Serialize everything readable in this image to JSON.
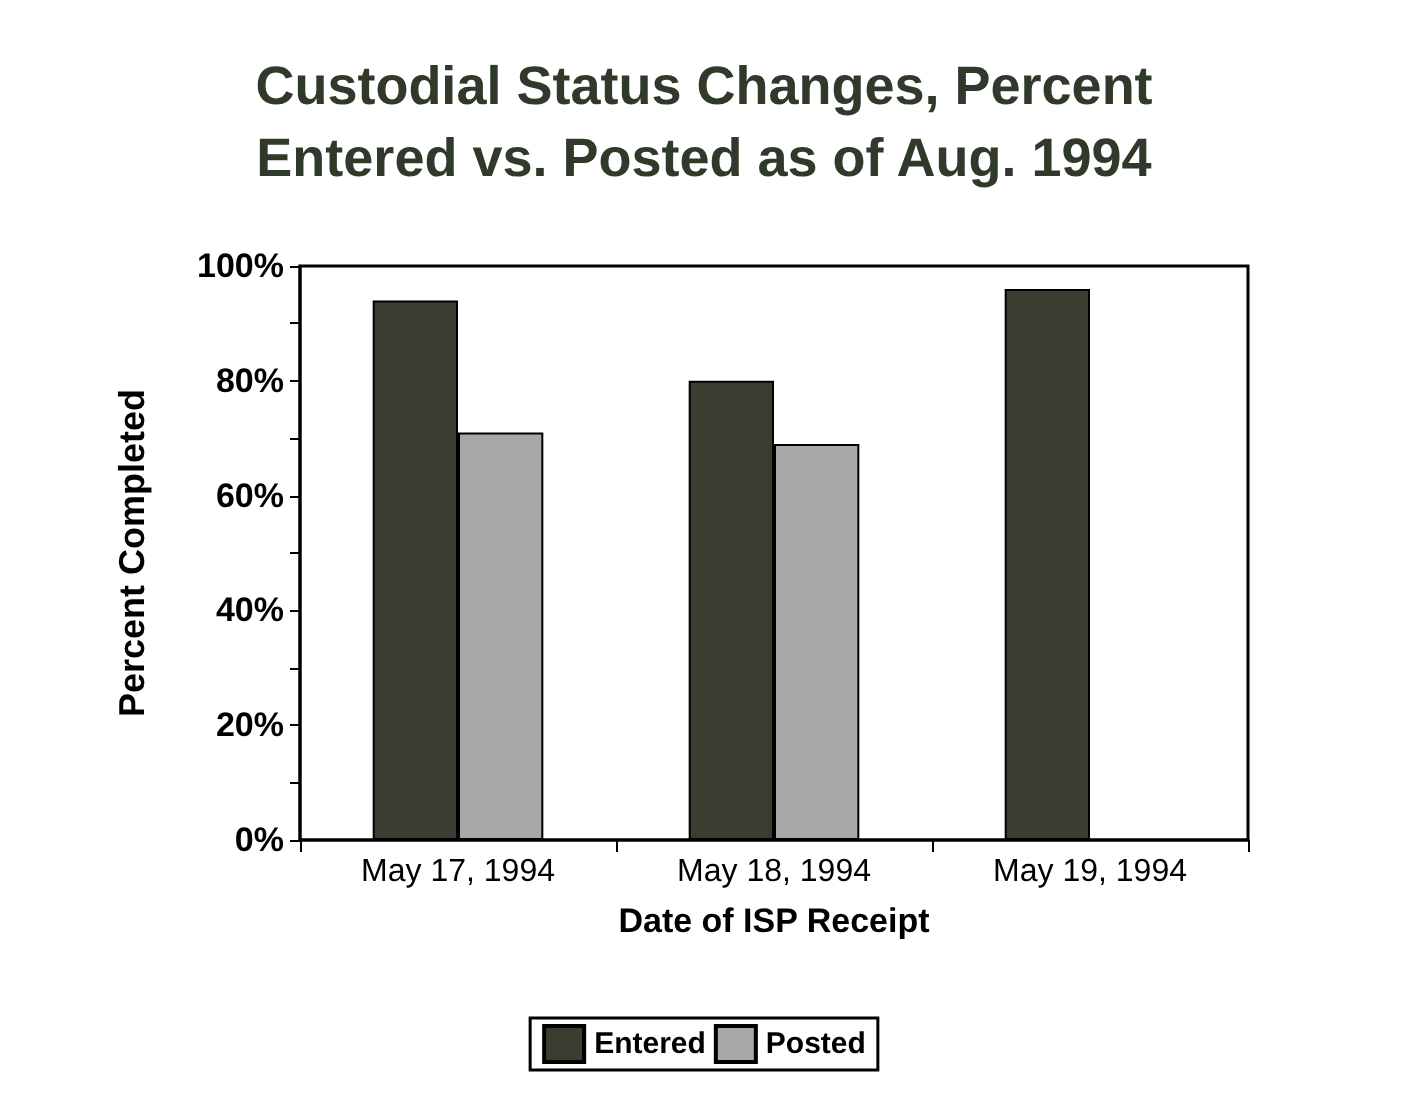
{
  "chart_data": {
    "type": "bar",
    "title": "Custodial Status Changes, Percent\nEntered vs. Posted as of Aug. 1994",
    "xlabel": "Date of ISP Receipt",
    "ylabel": "Percent Completed",
    "categories": [
      "May 17, 1994",
      "May 18, 1994",
      "May 19, 1994"
    ],
    "series": [
      {
        "name": "Entered",
        "color": "#3b3d30",
        "values": [
          94,
          80,
          96
        ]
      },
      {
        "name": "Posted",
        "color": "#a8a8a8",
        "values": [
          71,
          69,
          null
        ]
      }
    ],
    "ylim": [
      0,
      100
    ],
    "yticks": [
      {
        "value": 0,
        "label": "0%"
      },
      {
        "value": 10,
        "label": null
      },
      {
        "value": 20,
        "label": "20%"
      },
      {
        "value": 30,
        "label": null
      },
      {
        "value": 40,
        "label": "40%"
      },
      {
        "value": 50,
        "label": null
      },
      {
        "value": 60,
        "label": "60%"
      },
      {
        "value": 70,
        "label": null
      },
      {
        "value": 80,
        "label": "80%"
      },
      {
        "value": 90,
        "label": null
      },
      {
        "value": 100,
        "label": "100%"
      }
    ],
    "grid": false,
    "legend": "bottom"
  }
}
